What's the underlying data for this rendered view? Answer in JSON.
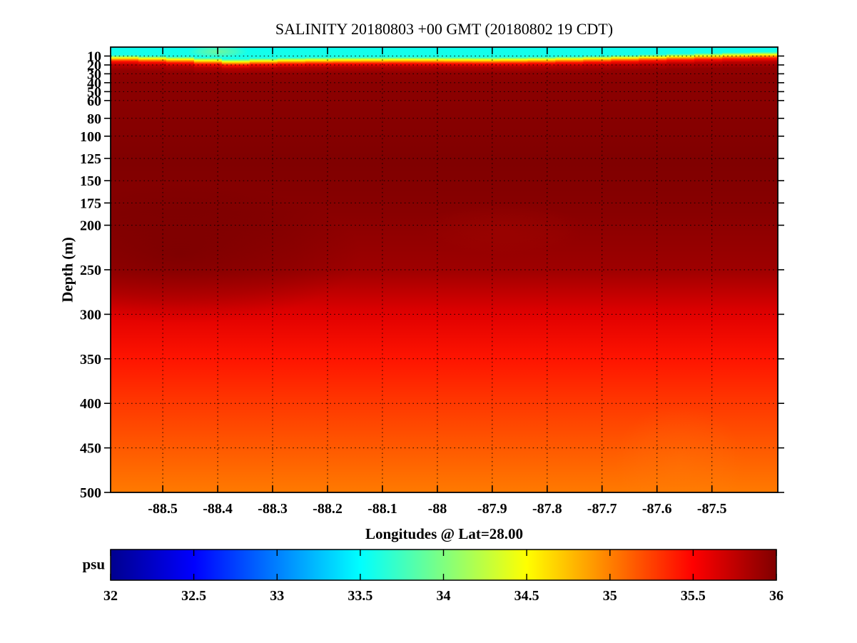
{
  "figure": {
    "title": "SALINITY 20180803 +00 GMT (20180802 19 CDT)",
    "xlabel": "Longitudes @ Lat=28.00",
    "ylabel": "Depth (m)",
    "colorbar_label": "psu"
  },
  "chart_data": {
    "type": "heatmap",
    "title": "SALINITY 20180803 +00 GMT (20180802 19 CDT)",
    "xlabel": "Longitudes @ Lat=28.00",
    "ylabel": "Depth (m)",
    "grid": true,
    "x_range": [
      -88.595,
      -87.38
    ],
    "x_ticks": [
      -88.5,
      -88.4,
      -88.3,
      -88.2,
      -88.1,
      -88,
      -87.9,
      -87.8,
      -87.7,
      -87.6,
      -87.5
    ],
    "x_tick_labels": [
      "-88.5",
      "-88.4",
      "-88.3",
      "-88.2",
      "-88.1",
      "-88",
      "-87.9",
      "-87.8",
      "-87.7",
      "-87.6",
      "-87.5"
    ],
    "y_range": [
      0,
      500
    ],
    "y_ticks": [
      10,
      20,
      30,
      40,
      50,
      60,
      80,
      100,
      125,
      150,
      175,
      200,
      250,
      300,
      350,
      400,
      450,
      500
    ],
    "colorbar": {
      "label": "psu",
      "range": [
        32,
        36
      ],
      "ticks": [
        32,
        32.5,
        33,
        33.5,
        34,
        34.5,
        35,
        35.5,
        36
      ],
      "tick_labels": [
        "32",
        "32.5",
        "33",
        "33.5",
        "34",
        "34.5",
        "35",
        "35.5",
        "36"
      ],
      "colormap": "jet"
    },
    "colormap_anchors": [
      [
        0,
        "#00008F"
      ],
      [
        0.125,
        "#0000FF"
      ],
      [
        0.375,
        "#00FFFF"
      ],
      [
        0.625,
        "#FFFF00"
      ],
      [
        0.875,
        "#FF0000"
      ],
      [
        1,
        "#800000"
      ]
    ],
    "surface_psu": 33.55,
    "surface_depth_extent_m": 45,
    "surface_columns": 24,
    "surface_band_stops": [
      [
        -2.5,
        33.6
      ],
      [
        -0.8,
        34.05
      ],
      [
        0.8,
        34.5
      ],
      [
        2.5,
        34.95
      ],
      [
        4.8,
        35.45
      ],
      [
        8.5,
        35.78
      ],
      [
        15,
        35.93
      ],
      [
        28,
        35.96
      ]
    ],
    "mixed_layer_boundary_m": [
      [
        -88.595,
        11
      ],
      [
        -88.5,
        12.5
      ],
      [
        -88.44,
        13.5
      ],
      [
        -88.38,
        16
      ],
      [
        -88.3,
        14.5
      ],
      [
        -88.2,
        13.8
      ],
      [
        -88.05,
        13.5
      ],
      [
        -87.9,
        13.8
      ],
      [
        -87.8,
        13.2
      ],
      [
        -87.7,
        12
      ],
      [
        -87.6,
        10.5
      ],
      [
        -87.5,
        9
      ],
      [
        -87.38,
        7.5
      ]
    ],
    "salinity_depth_profile_psu": [
      [
        0,
        35.96
      ],
      [
        60,
        35.96
      ],
      [
        130,
        36.0
      ],
      [
        185,
        35.97
      ],
      [
        250,
        35.88
      ],
      [
        300,
        35.62
      ],
      [
        350,
        35.42
      ],
      [
        400,
        35.28
      ],
      [
        450,
        35.15
      ],
      [
        500,
        35.02
      ]
    ],
    "anomalies": [
      {
        "lon": -88.47,
        "depth": 232,
        "rx_deg": 0.33,
        "ry_m": 78,
        "color": "#5c0000",
        "opacity": 0.42
      },
      {
        "lon": -87.88,
        "depth": 205,
        "rx_deg": 0.15,
        "ry_m": 30,
        "color": "#b00900",
        "opacity": 0.28
      },
      {
        "lon": -88.4,
        "depth": 5,
        "rx_deg": 0.055,
        "ry_m": 7,
        "color": "#c8f050",
        "opacity": 0.5
      },
      {
        "lon": -87.56,
        "depth": 470,
        "rx_deg": 0.12,
        "ry_m": 70,
        "color": "#ff8c10",
        "opacity": 0.2
      }
    ]
  }
}
